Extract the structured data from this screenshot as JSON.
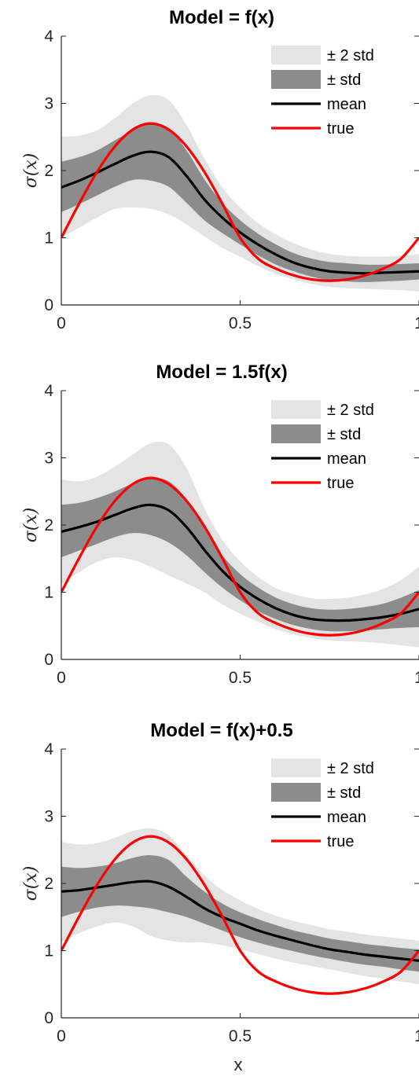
{
  "colors": {
    "band_2std": "#e4e4e4",
    "band_1std": "#8c8c8c",
    "mean": "#000000",
    "true": "#ff0000",
    "axis": "#262626"
  },
  "xlabel": "x",
  "ylabel": "σ(x)",
  "chart_data": [
    {
      "type": "area",
      "title": "Model = f(x)",
      "ylabel": "σ(x)",
      "xlabel": "",
      "xlim": [
        0,
        1
      ],
      "ylim": [
        0,
        4
      ],
      "xticks": [
        0,
        0.5,
        1
      ],
      "xtick_labels": [
        "0",
        "0.5",
        "1"
      ],
      "yticks": [
        0,
        1,
        2,
        3,
        4
      ],
      "ytick_labels": [
        "0",
        "1",
        "2",
        "3",
        "4"
      ],
      "legend": [
        "± 2 std",
        "± std",
        "mean",
        "true"
      ],
      "legend_position": "top-right",
      "x": [
        0,
        0.05,
        0.1,
        0.15,
        0.2,
        0.25,
        0.3,
        0.35,
        0.4,
        0.45,
        0.5,
        0.55,
        0.6,
        0.65,
        0.7,
        0.75,
        0.8,
        0.85,
        0.9,
        0.95,
        1
      ],
      "series": [
        {
          "name": "mean",
          "values": [
            1.75,
            1.85,
            1.97,
            2.1,
            2.22,
            2.28,
            2.2,
            1.92,
            1.57,
            1.3,
            1.08,
            0.9,
            0.75,
            0.63,
            0.55,
            0.5,
            0.48,
            0.47,
            0.48,
            0.49,
            0.5
          ]
        },
        {
          "name": "+ std",
          "values": [
            2.13,
            2.2,
            2.3,
            2.45,
            2.6,
            2.7,
            2.63,
            2.3,
            1.87,
            1.52,
            1.26,
            1.06,
            0.9,
            0.77,
            0.69,
            0.64,
            0.62,
            0.6,
            0.6,
            0.61,
            0.62
          ]
        },
        {
          "name": "- std",
          "values": [
            1.38,
            1.5,
            1.63,
            1.76,
            1.86,
            1.85,
            1.76,
            1.52,
            1.26,
            1.07,
            0.9,
            0.74,
            0.6,
            0.5,
            0.42,
            0.37,
            0.35,
            0.34,
            0.35,
            0.36,
            0.38
          ]
        },
        {
          "name": "+ 2 std",
          "values": [
            2.5,
            2.52,
            2.6,
            2.78,
            3.0,
            3.12,
            3.05,
            2.68,
            2.18,
            1.75,
            1.45,
            1.22,
            1.05,
            0.92,
            0.82,
            0.76,
            0.73,
            0.72,
            0.72,
            0.73,
            0.76
          ]
        },
        {
          "name": "- 2 std",
          "values": [
            1.0,
            1.15,
            1.3,
            1.43,
            1.45,
            1.43,
            1.35,
            1.2,
            1.02,
            0.85,
            0.72,
            0.58,
            0.46,
            0.38,
            0.31,
            0.27,
            0.25,
            0.24,
            0.23,
            0.22,
            0.2
          ]
        },
        {
          "name": "true",
          "values": [
            1.0,
            1.51,
            1.98,
            2.36,
            2.61,
            2.7,
            2.61,
            2.36,
            1.98,
            1.51,
            1.0,
            0.69,
            0.54,
            0.44,
            0.38,
            0.36,
            0.38,
            0.44,
            0.54,
            0.69,
            1.0
          ]
        }
      ]
    },
    {
      "type": "area",
      "title": "Model = 1.5f(x)",
      "ylabel": "σ(x)",
      "xlabel": "",
      "xlim": [
        0,
        1
      ],
      "ylim": [
        0,
        4
      ],
      "xticks": [
        0,
        0.5,
        1
      ],
      "xtick_labels": [
        "0",
        "0.5",
        "1"
      ],
      "yticks": [
        0,
        1,
        2,
        3,
        4
      ],
      "ytick_labels": [
        "0",
        "1",
        "2",
        "3",
        "4"
      ],
      "legend": [
        "± 2 std",
        "± std",
        "mean",
        "true"
      ],
      "legend_position": "top-right",
      "x": [
        0,
        0.05,
        0.1,
        0.15,
        0.2,
        0.25,
        0.3,
        0.35,
        0.4,
        0.45,
        0.5,
        0.55,
        0.6,
        0.65,
        0.7,
        0.75,
        0.8,
        0.85,
        0.9,
        0.95,
        1
      ],
      "series": [
        {
          "name": "mean",
          "values": [
            1.9,
            1.97,
            2.05,
            2.15,
            2.25,
            2.3,
            2.22,
            1.97,
            1.63,
            1.32,
            1.08,
            0.9,
            0.76,
            0.66,
            0.6,
            0.58,
            0.58,
            0.6,
            0.63,
            0.68,
            0.75
          ]
        },
        {
          "name": "+ std",
          "values": [
            2.3,
            2.33,
            2.4,
            2.5,
            2.62,
            2.7,
            2.65,
            2.38,
            1.95,
            1.55,
            1.27,
            1.07,
            0.92,
            0.82,
            0.76,
            0.74,
            0.75,
            0.78,
            0.83,
            0.92,
            1.03
          ]
        },
        {
          "name": "- std",
          "values": [
            1.52,
            1.62,
            1.72,
            1.82,
            1.88,
            1.85,
            1.74,
            1.55,
            1.3,
            1.07,
            0.88,
            0.72,
            0.6,
            0.51,
            0.45,
            0.42,
            0.42,
            0.43,
            0.45,
            0.47,
            0.48
          ]
        },
        {
          "name": "+ 2 std",
          "values": [
            2.68,
            2.65,
            2.72,
            2.87,
            3.05,
            3.22,
            3.2,
            2.85,
            2.25,
            1.78,
            1.46,
            1.23,
            1.06,
            0.97,
            0.91,
            0.9,
            0.92,
            0.97,
            1.05,
            1.18,
            1.38
          ]
        },
        {
          "name": "- 2 std",
          "values": [
            1.12,
            1.3,
            1.45,
            1.52,
            1.48,
            1.38,
            1.25,
            1.13,
            1.0,
            0.82,
            0.68,
            0.56,
            0.45,
            0.37,
            0.32,
            0.28,
            0.27,
            0.26,
            0.24,
            0.21,
            0.18
          ]
        },
        {
          "name": "true",
          "values": [
            1.0,
            1.51,
            1.98,
            2.36,
            2.61,
            2.7,
            2.61,
            2.36,
            1.98,
            1.51,
            1.0,
            0.69,
            0.54,
            0.44,
            0.38,
            0.36,
            0.38,
            0.44,
            0.54,
            0.69,
            1.0
          ]
        }
      ]
    },
    {
      "type": "area",
      "title": "Model = f(x)+0.5",
      "ylabel": "σ(x)",
      "xlabel": "x",
      "xlim": [
        0,
        1
      ],
      "ylim": [
        0,
        4
      ],
      "xticks": [
        0,
        0.5,
        1
      ],
      "xtick_labels": [
        "0",
        "0.5",
        "1"
      ],
      "yticks": [
        0,
        1,
        2,
        3,
        4
      ],
      "ytick_labels": [
        "0",
        "1",
        "2",
        "3",
        "4"
      ],
      "legend": [
        "± 2 std",
        "± std",
        "mean",
        "true"
      ],
      "legend_position": "top-right",
      "x": [
        0,
        0.05,
        0.1,
        0.15,
        0.2,
        0.25,
        0.3,
        0.35,
        0.4,
        0.45,
        0.5,
        0.55,
        0.6,
        0.65,
        0.7,
        0.75,
        0.8,
        0.85,
        0.9,
        0.95,
        1
      ],
      "series": [
        {
          "name": "mean",
          "values": [
            1.88,
            1.9,
            1.94,
            1.98,
            2.02,
            2.03,
            1.95,
            1.8,
            1.63,
            1.5,
            1.4,
            1.3,
            1.22,
            1.15,
            1.08,
            1.02,
            0.98,
            0.94,
            0.91,
            0.88,
            0.85
          ]
        },
        {
          "name": "+ std",
          "values": [
            2.25,
            2.23,
            2.25,
            2.3,
            2.38,
            2.42,
            2.35,
            2.1,
            1.88,
            1.7,
            1.57,
            1.47,
            1.38,
            1.3,
            1.24,
            1.18,
            1.14,
            1.1,
            1.07,
            1.04,
            1.02
          ]
        },
        {
          "name": "- std",
          "values": [
            1.5,
            1.58,
            1.64,
            1.67,
            1.66,
            1.63,
            1.57,
            1.5,
            1.4,
            1.3,
            1.2,
            1.12,
            1.05,
            0.99,
            0.93,
            0.88,
            0.83,
            0.79,
            0.76,
            0.72,
            0.69
          ]
        },
        {
          "name": "+ 2 std",
          "values": [
            2.62,
            2.58,
            2.6,
            2.68,
            2.78,
            2.82,
            2.72,
            2.42,
            2.12,
            1.9,
            1.75,
            1.62,
            1.52,
            1.44,
            1.38,
            1.32,
            1.28,
            1.24,
            1.21,
            1.18,
            1.15
          ]
        },
        {
          "name": "- 2 std",
          "values": [
            1.12,
            1.26,
            1.36,
            1.42,
            1.36,
            1.22,
            1.15,
            1.12,
            1.12,
            1.08,
            1.02,
            0.95,
            0.88,
            0.82,
            0.77,
            0.72,
            0.67,
            0.62,
            0.58,
            0.54,
            0.5
          ]
        },
        {
          "name": "true",
          "values": [
            1.0,
            1.51,
            1.98,
            2.36,
            2.61,
            2.7,
            2.61,
            2.36,
            1.98,
            1.51,
            1.0,
            0.69,
            0.54,
            0.44,
            0.38,
            0.36,
            0.38,
            0.44,
            0.54,
            0.69,
            1.0
          ]
        }
      ]
    }
  ]
}
